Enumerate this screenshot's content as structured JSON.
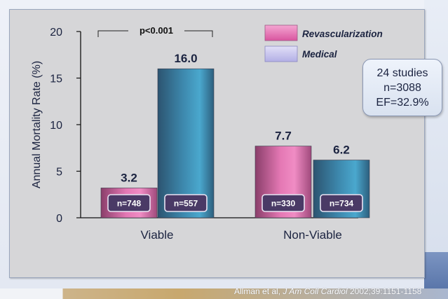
{
  "chart_data": {
    "type": "bar",
    "categories": [
      "Viable",
      "Non-Viable"
    ],
    "series": [
      {
        "name": "Revascularization",
        "values": [
          3.2,
          7.7
        ],
        "n_labels": [
          "n=748",
          "n=330"
        ]
      },
      {
        "name": "Medical",
        "values": [
          16.0,
          6.2
        ],
        "n_labels": [
          "n=557",
          "n=734"
        ]
      }
    ],
    "value_labels": [
      [
        "3.2",
        "16.0"
      ],
      [
        "7.7",
        "6.2"
      ]
    ],
    "ylabel": "Annual Mortality Rate (%)",
    "ylim": [
      0,
      20
    ],
    "yticks": [
      0,
      5,
      10,
      15,
      20
    ],
    "annotation": "p<0.001",
    "legend_position": "top-right",
    "grid": false,
    "colors": {
      "revascularization": "#e05aa3",
      "medical": "#3f8fb0",
      "legend_revascularization": "#e97fbc",
      "legend_medical": "#c9c6ef"
    }
  },
  "callout": {
    "line1": "24 studies",
    "line2": "n=3088",
    "line3": "EF=32.9%"
  },
  "citation": {
    "authors": "Allman et al,",
    "journal": "J Am Coll Cardiol",
    "details": "2002;39:1151-1158"
  }
}
